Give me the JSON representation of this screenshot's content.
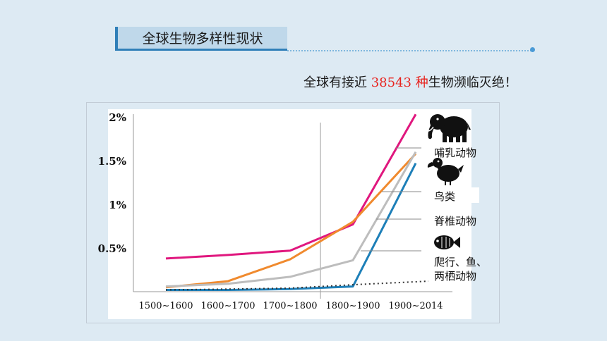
{
  "header": {
    "title": "全球生物多样性现状",
    "subtitle_prefix": "全球有接近 ",
    "subtitle_number": "38543 种",
    "subtitle_suffix": "生物濒临灭绝！"
  },
  "chart_data": {
    "type": "line",
    "categories": [
      "1500~1600",
      "1600~1700",
      "1700~1800",
      "1800~1900",
      "1900~2014"
    ],
    "y_tick_labels": [
      "0.5%",
      "1%",
      "1.5%",
      "2%"
    ],
    "y_ticks": [
      0.5,
      1,
      1.5,
      2
    ],
    "ylim": [
      0,
      2
    ],
    "grid": false,
    "series": [
      {
        "name": "哺乳动物",
        "color": "#e0177e",
        "points": [
          [
            0,
            0.38
          ],
          [
            1,
            0.42
          ],
          [
            2,
            0.47
          ],
          [
            3,
            0.77
          ],
          [
            4,
            2.03
          ]
        ]
      },
      {
        "name": "鸟类",
        "color": "#f08a2e",
        "points": [
          [
            0,
            0.05
          ],
          [
            1,
            0.12
          ],
          [
            2,
            0.37
          ],
          [
            3,
            0.8
          ],
          [
            4,
            1.58
          ]
        ]
      },
      {
        "name": "脊椎动物",
        "color": "#bdbdbd",
        "points": [
          [
            0,
            0.06
          ],
          [
            1,
            0.09
          ],
          [
            2,
            0.17
          ],
          [
            3,
            0.36
          ],
          [
            4,
            1.6
          ]
        ]
      },
      {
        "name": "爬行、鱼、两栖动物",
        "color": "#1d7fb8",
        "points": [
          [
            0,
            0.02
          ],
          [
            1,
            0.02
          ],
          [
            2,
            0.03
          ],
          [
            3,
            0.06
          ],
          [
            4,
            1.47
          ]
        ]
      },
      {
        "name": "",
        "color": "#333333",
        "dashed": true,
        "points": [
          [
            0,
            0.02
          ],
          [
            1,
            0.03
          ],
          [
            2,
            0.04
          ],
          [
            3,
            0.08
          ],
          [
            4,
            0.12
          ]
        ]
      }
    ],
    "legend_entries": [
      {
        "label": "哺乳动物",
        "icon": "elephant-icon"
      },
      {
        "label": "鸟类",
        "icon": "dodo-bird-icon"
      },
      {
        "label": "脊椎动物",
        "icon": ""
      },
      {
        "label_lines": [
          "爬行、鱼、",
          "两栖动物"
        ],
        "icon": "fish-icon"
      }
    ],
    "legend_position": "right",
    "vertical_marker": "between 1700~1800 and 1800~1900"
  }
}
